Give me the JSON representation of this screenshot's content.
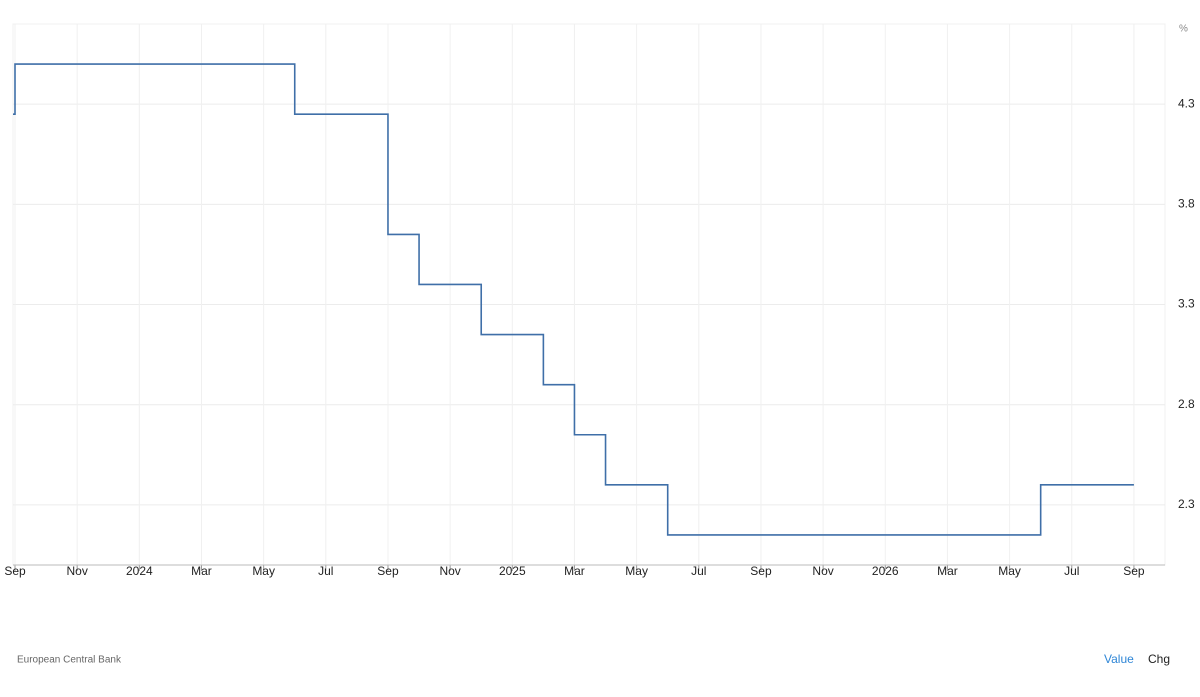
{
  "chart_data": {
    "type": "step-line",
    "y_unit": "%",
    "source": "European Central Bank",
    "buttons": [
      "Value",
      "Chg"
    ],
    "xlim": [
      "2023-09",
      "2026-10"
    ],
    "xticks": [
      {
        "value": "2023-09",
        "label": "Sep"
      },
      {
        "value": "2023-11",
        "label": "Nov"
      },
      {
        "value": "2024-01",
        "label": "2024"
      },
      {
        "value": "2024-03",
        "label": "Mar"
      },
      {
        "value": "2024-05",
        "label": "May"
      },
      {
        "value": "2024-07",
        "label": "Jul"
      },
      {
        "value": "2024-09",
        "label": "Sep"
      },
      {
        "value": "2024-11",
        "label": "Nov"
      },
      {
        "value": "2025-01",
        "label": "2025"
      },
      {
        "value": "2025-03",
        "label": "Mar"
      },
      {
        "value": "2025-05",
        "label": "May"
      },
      {
        "value": "2025-07",
        "label": "Jul"
      },
      {
        "value": "2025-09",
        "label": "Sep"
      },
      {
        "value": "2025-11",
        "label": "Nov"
      },
      {
        "value": "2026-01",
        "label": "2026"
      },
      {
        "value": "2026-03",
        "label": "Mar"
      },
      {
        "value": "2026-05",
        "label": "May"
      },
      {
        "value": "2026-07",
        "label": "Jul"
      },
      {
        "value": "2026-09",
        "label": "Sep"
      }
    ],
    "ylim": [
      2.0,
      4.7
    ],
    "yticks": [
      2.3,
      2.8,
      3.3,
      3.8,
      4.3
    ],
    "grid": true,
    "series": [
      {
        "color": "#3f6fa8",
        "x": [
          "2023-08",
          "2023-09",
          "2024-06",
          "2024-09",
          "2024-10",
          "2024-12",
          "2025-02",
          "2025-03",
          "2025-04",
          "2025-06",
          "2026-06",
          "2026-09"
        ],
        "values": [
          4.25,
          4.5,
          4.25,
          3.65,
          3.4,
          3.15,
          2.9,
          2.65,
          2.4,
          2.15,
          2.4,
          2.4
        ]
      }
    ]
  }
}
